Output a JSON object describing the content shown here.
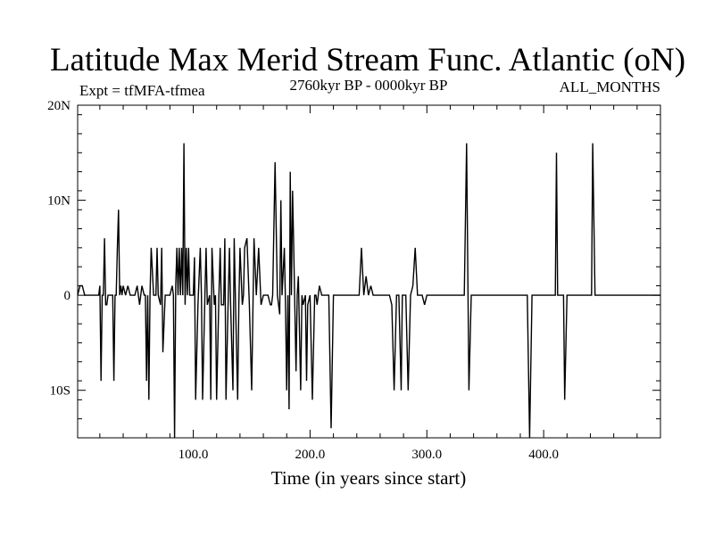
{
  "chart_data": {
    "type": "line",
    "title": "Latitude Max Merid Stream Func. Atlantic (oN)",
    "subtitle_left": "Expt = tfMFA-tfmea",
    "subtitle_center": "2760kyr BP - 0000kyr BP",
    "subtitle_right": "ALL_MONTHS",
    "xlabel": "Time (in years since start)",
    "ylabel": "",
    "xlim": [
      1,
      500
    ],
    "ylim": [
      -15,
      20
    ],
    "x_ticks": [
      {
        "value": 100,
        "label": "100.0"
      },
      {
        "value": 200,
        "label": "200.0"
      },
      {
        "value": 300,
        "label": "300.0"
      },
      {
        "value": 400,
        "label": "400.0"
      }
    ],
    "y_ticks": [
      {
        "value": 20,
        "label": "20N"
      },
      {
        "value": 10,
        "label": "10N"
      },
      {
        "value": 0,
        "label": "0"
      },
      {
        "value": -10,
        "label": "10S"
      }
    ],
    "grid": false,
    "legend": "none",
    "line_color": "#000000",
    "series": [
      {
        "x": [
          1,
          3,
          5,
          7,
          9,
          11,
          13,
          15,
          17,
          19,
          20,
          21,
          22,
          23,
          24,
          25,
          26,
          27,
          28,
          30,
          31,
          32,
          33,
          34,
          35,
          36,
          37,
          38,
          39,
          40,
          42,
          44,
          46,
          48,
          50,
          52,
          54,
          56,
          58,
          59,
          60,
          61,
          62,
          63,
          64,
          66,
          68,
          69,
          70,
          72,
          73,
          74,
          76,
          77,
          78,
          80,
          82,
          83,
          84,
          85,
          86,
          87,
          88,
          89,
          90,
          91,
          92,
          93,
          94,
          95,
          96,
          97,
          98,
          100,
          101,
          102,
          104,
          106,
          107,
          108,
          110,
          111,
          112,
          114,
          115,
          116,
          118,
          119,
          120,
          122,
          123,
          124,
          126,
          127,
          128,
          130,
          131,
          132,
          134,
          135,
          136,
          138,
          139,
          140,
          142,
          143,
          144,
          146,
          148,
          150,
          152,
          154,
          156,
          158,
          160,
          162,
          164,
          166,
          167,
          168,
          170,
          172,
          174,
          175,
          176,
          178,
          179,
          180,
          181,
          182,
          183,
          184,
          185,
          186,
          188,
          189,
          190,
          192,
          193,
          194,
          196,
          197,
          198,
          200,
          202,
          204,
          205,
          206,
          208,
          210,
          212,
          214,
          216,
          218,
          220,
          222,
          224,
          226,
          228,
          230,
          232,
          234,
          236,
          238,
          240,
          242,
          244,
          246,
          248,
          250,
          252,
          254,
          256,
          258,
          260,
          262,
          264,
          266,
          267,
          268,
          270,
          272,
          274,
          275,
          276,
          278,
          279,
          280,
          282,
          284,
          286,
          288,
          290,
          292,
          294,
          296,
          298,
          300,
          302,
          304,
          306,
          308,
          310,
          312,
          314,
          316,
          318,
          320,
          322,
          324,
          325,
          326,
          328,
          330,
          332,
          334,
          336,
          338,
          340,
          342,
          344,
          346,
          348,
          350,
          352,
          354,
          356,
          358,
          360,
          362,
          364,
          366,
          368,
          370,
          372,
          374,
          376,
          378,
          380,
          382,
          384,
          385,
          386,
          388,
          390,
          392,
          394,
          396,
          398,
          400,
          402,
          404,
          406,
          408,
          409,
          410,
          411,
          412,
          414,
          416,
          417,
          418,
          420,
          422,
          424,
          426,
          428,
          430,
          432,
          434,
          436,
          438,
          440,
          441,
          442,
          444,
          446,
          448,
          450,
          452,
          454,
          456,
          458,
          460,
          462,
          464,
          466,
          468,
          470,
          472,
          474,
          476,
          478,
          480,
          482,
          484,
          486,
          488,
          490,
          492,
          494,
          495,
          496,
          497,
          498,
          499,
          500
        ],
        "values": [
          0,
          1,
          1,
          0,
          0,
          0,
          0,
          0,
          0,
          0,
          1,
          -9,
          0,
          0,
          6,
          -1,
          -1,
          0,
          0,
          0,
          0,
          -9,
          0,
          0,
          5,
          9,
          0,
          1,
          0,
          1,
          0,
          1,
          0,
          0,
          0,
          1,
          -1,
          1,
          0,
          0,
          -9,
          0,
          -11,
          0,
          5,
          0,
          0,
          5,
          0,
          -1,
          5,
          -6,
          0,
          0,
          0,
          0,
          1,
          0,
          -15,
          1,
          5,
          0,
          5,
          0,
          5,
          0,
          16,
          -1,
          5,
          0,
          5,
          0,
          0,
          0,
          4,
          -11,
          -1,
          5,
          0,
          -11,
          0,
          5,
          -1,
          0,
          -11,
          5,
          -1,
          0,
          -11,
          0,
          5,
          -1,
          -1,
          6,
          -11,
          0,
          5,
          -1,
          -10,
          6,
          0,
          -11,
          -1,
          5,
          -1,
          0,
          5,
          6,
          -1,
          -10,
          6,
          0,
          5,
          -1,
          0,
          0,
          0,
          -1,
          -1,
          0,
          14,
          0,
          -2,
          10,
          0,
          5,
          -1,
          -10,
          0,
          -12,
          13,
          0,
          11,
          5,
          -8,
          0,
          2,
          -10,
          0,
          -1,
          0,
          -9,
          -1,
          0,
          -11,
          0,
          0,
          -1,
          1,
          0,
          0,
          0,
          0,
          -14,
          0,
          0,
          0,
          0,
          0,
          0,
          0,
          0,
          0,
          0,
          0,
          0,
          5,
          0,
          2,
          0,
          1,
          0,
          0,
          0,
          0,
          0,
          0,
          0,
          0,
          0,
          -1,
          -10,
          0,
          0,
          0,
          -10,
          0,
          0,
          0,
          -10,
          0,
          1,
          5,
          0,
          0,
          0,
          -1,
          0,
          0,
          0,
          0,
          0,
          0,
          0,
          0,
          0,
          0,
          0,
          0,
          0,
          0,
          0,
          0,
          0,
          0,
          16,
          -10,
          0,
          0,
          0,
          0,
          0,
          0,
          0,
          0,
          0,
          0,
          0,
          0,
          0,
          0,
          0,
          0,
          0,
          0,
          0,
          0,
          0,
          0,
          0,
          0,
          0,
          0,
          -15,
          0,
          0,
          0,
          0,
          0,
          0,
          0,
          0,
          0,
          0,
          0,
          0,
          15,
          0,
          0,
          0,
          0,
          -11,
          0,
          0,
          0,
          0,
          0,
          0,
          0,
          0,
          0,
          0,
          0,
          0,
          16,
          0,
          0,
          0,
          0,
          0,
          0,
          0,
          0,
          0,
          0,
          0,
          0,
          0,
          0,
          0,
          0,
          0,
          0,
          0,
          0,
          0,
          0,
          0,
          0,
          0,
          0,
          0,
          0,
          0,
          0,
          0,
          0
        ]
      }
    ]
  }
}
